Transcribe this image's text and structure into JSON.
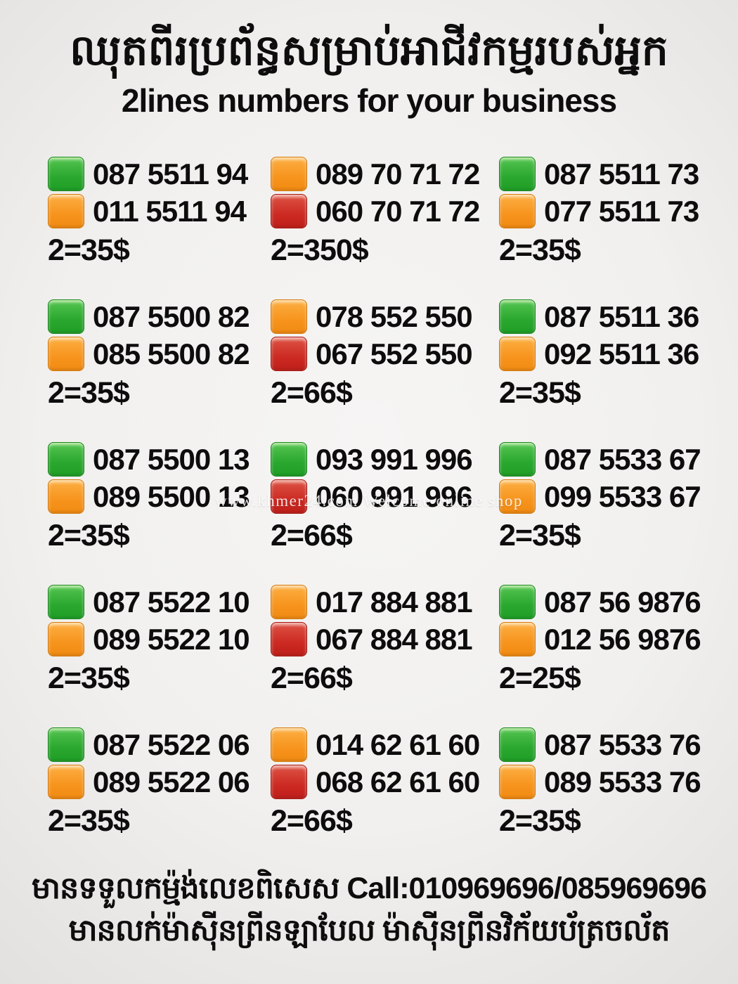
{
  "header": {
    "title_khmer": "ឈុតពីរប្រព័ន្ធសម្រាប់អាជីវកម្មរបស់អ្នក",
    "subtitle": "2lines numbers for your business"
  },
  "colors": {
    "green": "#2aa72e",
    "orange": "#f7941d",
    "red": "#cc2a22",
    "background": "#f1f0ee",
    "text": "#0d0d0d"
  },
  "grid": [
    {
      "lines": [
        {
          "color": "green",
          "number": "087 5511 94"
        },
        {
          "color": "orange",
          "number": "011 5511 94"
        }
      ],
      "price": "2=35$"
    },
    {
      "lines": [
        {
          "color": "orange",
          "number": "089 70 71 72"
        },
        {
          "color": "red",
          "number": "060 70 71 72"
        }
      ],
      "price": "2=350$"
    },
    {
      "lines": [
        {
          "color": "green",
          "number": "087 5511 73"
        },
        {
          "color": "orange",
          "number": "077 5511 73"
        }
      ],
      "price": "2=35$"
    },
    {
      "lines": [
        {
          "color": "green",
          "number": "087 5500 82"
        },
        {
          "color": "orange",
          "number": "085 5500 82"
        }
      ],
      "price": "2=35$"
    },
    {
      "lines": [
        {
          "color": "orange",
          "number": "078 552 550"
        },
        {
          "color": "red",
          "number": "067 552 550"
        }
      ],
      "price": "2=66$"
    },
    {
      "lines": [
        {
          "color": "green",
          "number": "087 5511 36"
        },
        {
          "color": "orange",
          "number": "092 5511 36"
        }
      ],
      "price": "2=35$"
    },
    {
      "lines": [
        {
          "color": "green",
          "number": "087 5500 13"
        },
        {
          "color": "orange",
          "number": "089 5500 13"
        }
      ],
      "price": "2=35$"
    },
    {
      "lines": [
        {
          "color": "green",
          "number": "093 991 996"
        },
        {
          "color": "red",
          "number": "060 991 996"
        }
      ],
      "price": "2=66$"
    },
    {
      "lines": [
        {
          "color": "green",
          "number": "087 5533 67"
        },
        {
          "color": "orange",
          "number": "099 5533 67"
        }
      ],
      "price": "2=35$"
    },
    {
      "lines": [
        {
          "color": "green",
          "number": "087 5522 10"
        },
        {
          "color": "orange",
          "number": "089 5522 10"
        }
      ],
      "price": "2=35$"
    },
    {
      "lines": [
        {
          "color": "orange",
          "number": "017 884 881"
        },
        {
          "color": "red",
          "number": "067 884 881"
        }
      ],
      "price": "2=66$"
    },
    {
      "lines": [
        {
          "color": "green",
          "number": "087 56 9876"
        },
        {
          "color": "orange",
          "number": "012 56 9876"
        }
      ],
      "price": "2=25$"
    },
    {
      "lines": [
        {
          "color": "green",
          "number": "087 5522 06"
        },
        {
          "color": "orange",
          "number": "089 5522 06"
        }
      ],
      "price": "2=35$"
    },
    {
      "lines": [
        {
          "color": "orange",
          "number": "014 62 61 60"
        },
        {
          "color": "red",
          "number": "068 62 61 60"
        }
      ],
      "price": "2=66$"
    },
    {
      "lines": [
        {
          "color": "green",
          "number": "087 5533 76"
        },
        {
          "color": "orange",
          "number": "089 5533 76"
        }
      ],
      "price": "2=35$"
    }
  ],
  "watermark": {
    "text": "www.khmer24.com Welcome online shop"
  },
  "footer": {
    "line1": "មានទទួលកម្ម៉ង់លេខពិសេស Call:010969696/085969696",
    "line2": "មានលក់ម៉ាស៊ីនព្រីនឡាបែល ម៉ាស៊ីនព្រីនវិក័យប័ត្រចល័ត"
  }
}
